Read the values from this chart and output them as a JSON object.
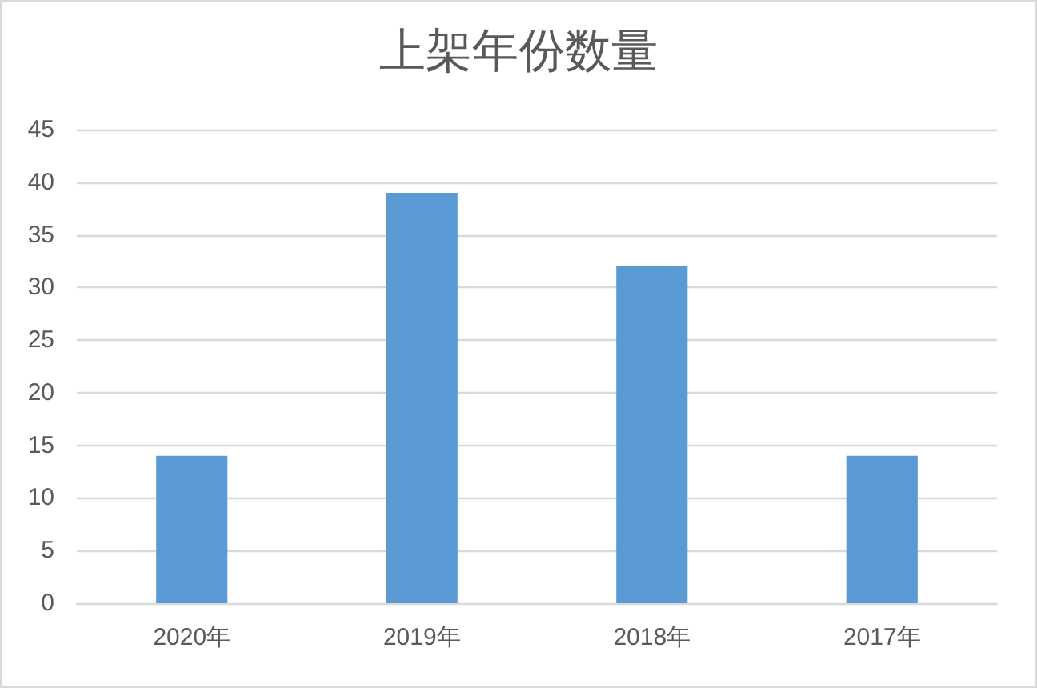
{
  "chart_data": {
    "type": "bar",
    "title": "上架年份数量",
    "categories": [
      "2020年",
      "2019年",
      "2018年",
      "2017年"
    ],
    "values": [
      14,
      39,
      32,
      14
    ],
    "color": "#5b9bd5",
    "ylim": [
      0,
      45
    ],
    "yticks": [
      0,
      5,
      10,
      15,
      20,
      25,
      30,
      35,
      40,
      45
    ],
    "grid": "y"
  }
}
